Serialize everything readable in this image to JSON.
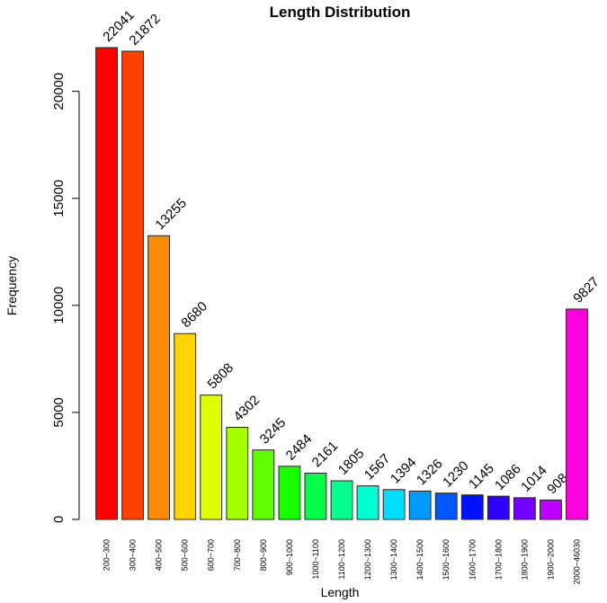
{
  "chart_data": {
    "type": "bar",
    "title": "Length Distribution",
    "xlabel": "Length",
    "ylabel": "Frequency",
    "ylim": [
      0,
      22041
    ],
    "yticks": [
      0,
      5000,
      10000,
      15000,
      20000
    ],
    "categories": [
      "200~300",
      "300~400",
      "400~500",
      "500~600",
      "600~700",
      "700~800",
      "800~900",
      "900~1000",
      "1000~1100",
      "1100~1200",
      "1200~1300",
      "1300~1400",
      "1400~1500",
      "1500~1600",
      "1600~1700",
      "1700~1800",
      "1800~1900",
      "1900~2000",
      "2000~46030"
    ],
    "values": [
      22041,
      21872,
      13255,
      8680,
      5808,
      4302,
      3245,
      2484,
      2161,
      1805,
      1567,
      1394,
      1326,
      1230,
      1145,
      1086,
      1014,
      908,
      9827
    ],
    "colors": [
      "#ff0000",
      "#ff4000",
      "#ff8c00",
      "#ffd400",
      "#dfff00",
      "#a6ff00",
      "#5fff00",
      "#18ff00",
      "#00ff49",
      "#00ff8c",
      "#00ffd2",
      "#00ddff",
      "#009aff",
      "#0056ff",
      "#0011ff",
      "#3000ff",
      "#7400ff",
      "#bb00ff",
      "#ff00dc"
    ],
    "grid": false,
    "show_value_labels": true
  }
}
